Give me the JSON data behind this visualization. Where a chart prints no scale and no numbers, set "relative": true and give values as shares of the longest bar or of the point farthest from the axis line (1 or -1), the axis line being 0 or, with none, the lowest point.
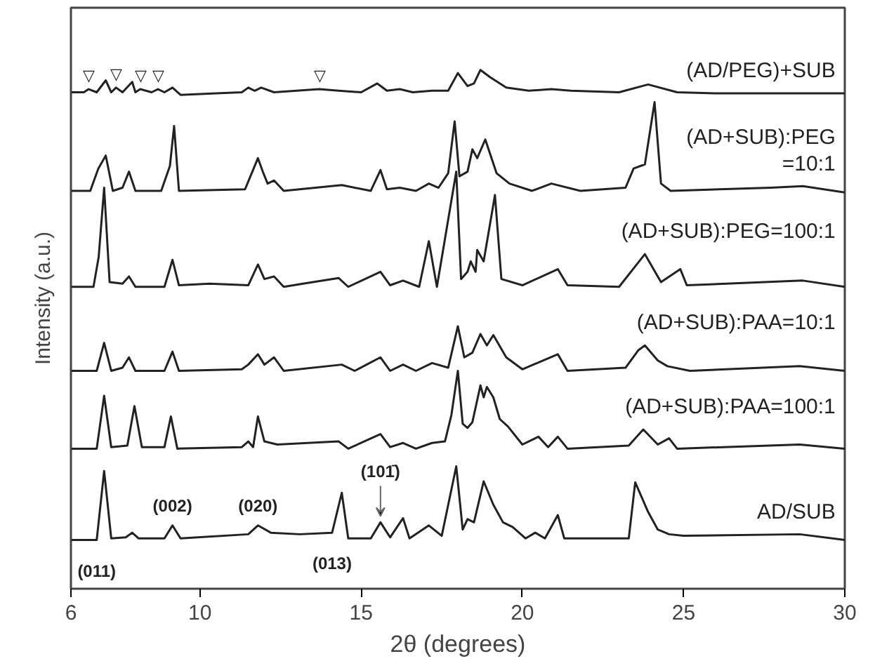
{
  "chart_data": {
    "type": "line",
    "relative": true,
    "xlabel": "2θ (degrees)",
    "ylabel": "Intensity (a.u.)",
    "xlim": [
      6,
      30
    ],
    "xticks": [
      6,
      10,
      15,
      20,
      25,
      30
    ],
    "grid": false,
    "marker": "none",
    "line_style": "solid",
    "series": [
      {
        "name": "(AD/PEG)+SUB",
        "color": "#222222",
        "x": [
          6,
          6.4,
          6.55,
          6.8,
          7.08,
          7.25,
          7.4,
          7.6,
          7.9,
          8.0,
          8.15,
          8.5,
          8.7,
          8.9,
          9.15,
          9.4,
          10.5,
          11.3,
          11.5,
          11.7,
          11.9,
          12.3,
          13.7,
          14.3,
          15.0,
          15.5,
          15.8,
          16.2,
          16.6,
          17.2,
          17.7,
          18.0,
          18.3,
          18.5,
          18.7,
          19.0,
          19.5,
          20.2,
          20.9,
          21.5,
          23.0,
          23.9,
          24.8,
          26,
          28,
          30
        ],
        "values": [
          0.957,
          0.957,
          0.963,
          0.957,
          0.98,
          0.957,
          0.966,
          0.957,
          0.977,
          0.957,
          0.963,
          0.957,
          0.963,
          0.957,
          0.966,
          0.952,
          0.955,
          0.957,
          0.966,
          0.96,
          0.966,
          0.957,
          0.963,
          0.96,
          0.957,
          0.974,
          0.96,
          0.963,
          0.957,
          0.96,
          0.96,
          0.994,
          0.969,
          0.974,
          1.0,
          0.986,
          0.966,
          0.96,
          0.963,
          0.96,
          0.957,
          0.972,
          0.957,
          0.955,
          0.955,
          0.955
        ]
      },
      {
        "name": "(AD+SUB):PEG\n=10:1",
        "color": "#222222",
        "x": [
          6,
          6.6,
          6.85,
          7.08,
          7.3,
          7.6,
          7.8,
          8.0,
          8.8,
          9.07,
          9.2,
          9.35,
          11.4,
          11.8,
          11.95,
          12.1,
          12.3,
          12.6,
          14.4,
          15.3,
          15.6,
          15.8,
          16.2,
          16.7,
          17.1,
          17.4,
          17.7,
          17.9,
          18.05,
          18.3,
          18.45,
          18.6,
          18.85,
          19.2,
          19.6,
          20.3,
          20.9,
          21.8,
          23.2,
          23.45,
          23.8,
          24.1,
          24.3,
          24.6,
          27.7,
          28.7,
          30
        ],
        "values": [
          0.767,
          0.767,
          0.81,
          0.835,
          0.767,
          0.773,
          0.804,
          0.767,
          0.767,
          0.815,
          0.892,
          0.767,
          0.77,
          0.83,
          0.804,
          0.781,
          0.787,
          0.767,
          0.778,
          0.767,
          0.807,
          0.77,
          0.773,
          0.767,
          0.781,
          0.773,
          0.801,
          0.901,
          0.795,
          0.804,
          0.847,
          0.83,
          0.866,
          0.801,
          0.781,
          0.767,
          0.781,
          0.767,
          0.773,
          0.81,
          0.818,
          0.938,
          0.781,
          0.767,
          0.773,
          0.776,
          0.764
        ]
      },
      {
        "name": "(AD+SUB):PEG=100:1",
        "color": "#222222",
        "x": [
          6,
          6.7,
          6.86,
          7.03,
          7.2,
          7.6,
          7.8,
          8.0,
          8.9,
          9.15,
          9.35,
          10.3,
          11.5,
          11.8,
          12.0,
          12.3,
          12.6,
          13.2,
          14.3,
          14.6,
          15.6,
          15.9,
          16.3,
          16.8,
          17.1,
          17.35,
          17.95,
          18.1,
          18.3,
          18.4,
          18.55,
          18.6,
          18.8,
          19.15,
          19.35,
          20.0,
          21.1,
          21.4,
          23.0,
          23.8,
          24.3,
          24.9,
          25.1,
          28.7,
          30
        ],
        "values": [
          0.582,
          0.582,
          0.639,
          0.773,
          0.591,
          0.588,
          0.602,
          0.582,
          0.582,
          0.634,
          0.585,
          0.588,
          0.585,
          0.625,
          0.597,
          0.602,
          0.582,
          0.588,
          0.599,
          0.582,
          0.611,
          0.585,
          0.594,
          0.582,
          0.67,
          0.582,
          0.804,
          0.597,
          0.611,
          0.631,
          0.611,
          0.653,
          0.631,
          0.759,
          0.597,
          0.585,
          0.616,
          0.585,
          0.582,
          0.645,
          0.591,
          0.616,
          0.585,
          0.594,
          0.582
        ]
      },
      {
        "name": "(AD+SUB):PAA=10:1",
        "color": "#222222",
        "x": [
          6,
          6.8,
          7.03,
          7.25,
          7.6,
          7.8,
          8.0,
          8.9,
          9.15,
          9.35,
          11.3,
          11.5,
          11.8,
          12.0,
          12.3,
          12.6,
          14.4,
          14.8,
          15.6,
          15.9,
          16.3,
          16.7,
          17.2,
          17.7,
          18.0,
          18.2,
          18.45,
          18.7,
          18.9,
          19.1,
          19.5,
          20.0,
          21.1,
          21.4,
          23.2,
          23.6,
          23.8,
          24.2,
          24.5,
          25.2,
          28.6,
          30
        ],
        "values": [
          0.42,
          0.42,
          0.474,
          0.42,
          0.426,
          0.446,
          0.42,
          0.42,
          0.457,
          0.42,
          0.423,
          0.432,
          0.452,
          0.432,
          0.446,
          0.42,
          0.432,
          0.42,
          0.446,
          0.42,
          0.432,
          0.42,
          0.435,
          0.426,
          0.506,
          0.446,
          0.455,
          0.491,
          0.469,
          0.489,
          0.446,
          0.423,
          0.452,
          0.42,
          0.426,
          0.46,
          0.469,
          0.44,
          0.429,
          0.42,
          0.429,
          0.42
        ]
      },
      {
        "name": "(AD+SUB):PAA=100:1",
        "color": "#222222",
        "x": [
          6,
          6.8,
          7.03,
          7.25,
          7.75,
          7.97,
          8.2,
          8.9,
          9.1,
          9.3,
          11.3,
          11.5,
          11.65,
          11.8,
          12.0,
          12.4,
          14.3,
          14.6,
          15.6,
          15.9,
          16.3,
          16.7,
          17.2,
          17.6,
          17.8,
          18.0,
          18.15,
          18.3,
          18.45,
          18.7,
          18.8,
          18.9,
          19.1,
          19.3,
          19.55,
          20.0,
          20.5,
          20.8,
          21.1,
          21.4,
          23.3,
          23.75,
          24.2,
          24.55,
          24.8,
          28.6,
          30
        ],
        "values": [
          0.27,
          0.27,
          0.372,
          0.273,
          0.276,
          0.352,
          0.273,
          0.273,
          0.332,
          0.27,
          0.273,
          0.284,
          0.273,
          0.332,
          0.284,
          0.278,
          0.284,
          0.27,
          0.298,
          0.273,
          0.281,
          0.27,
          0.281,
          0.284,
          0.335,
          0.42,
          0.318,
          0.31,
          0.321,
          0.392,
          0.369,
          0.389,
          0.369,
          0.327,
          0.313,
          0.278,
          0.293,
          0.273,
          0.293,
          0.27,
          0.276,
          0.307,
          0.278,
          0.29,
          0.27,
          0.278,
          0.27
        ]
      },
      {
        "name": "AD/SUB",
        "color": "#222222",
        "x": [
          6,
          6.8,
          7.03,
          7.25,
          7.7,
          7.9,
          8.1,
          8.9,
          9.15,
          9.4,
          11.5,
          11.8,
          12.2,
          13.1,
          14.1,
          14.4,
          14.6,
          15.3,
          15.6,
          15.9,
          16.3,
          16.5,
          17.1,
          17.5,
          17.95,
          18.15,
          18.3,
          18.5,
          18.8,
          19.1,
          19.4,
          19.7,
          20.1,
          20.4,
          20.7,
          21.1,
          21.3,
          23.3,
          23.5,
          23.9,
          24.2,
          24.55,
          25,
          28.6,
          30
        ],
        "values": [
          0.094,
          0.094,
          0.227,
          0.097,
          0.099,
          0.108,
          0.097,
          0.097,
          0.122,
          0.097,
          0.105,
          0.122,
          0.108,
          0.105,
          0.108,
          0.185,
          0.097,
          0.097,
          0.128,
          0.099,
          0.136,
          0.097,
          0.122,
          0.102,
          0.236,
          0.114,
          0.134,
          0.128,
          0.207,
          0.162,
          0.128,
          0.119,
          0.097,
          0.108,
          0.097,
          0.142,
          0.097,
          0.097,
          0.205,
          0.148,
          0.114,
          0.105,
          0.102,
          0.105,
          0.094
        ]
      }
    ],
    "annotations": [
      {
        "text": "(011)",
        "x": 6.8,
        "y": 0.094
      },
      {
        "text": "(002)",
        "x": 9.15,
        "y": 0.122
      },
      {
        "text": "(020)",
        "x": 11.8,
        "y": 0.122
      },
      {
        "text": "(013)",
        "x": 14.1,
        "y": 0.108
      },
      {
        "text": "(101̄)",
        "x": 15.6,
        "y": 0.128
      },
      {
        "text": "▽",
        "x": 6.55,
        "y": 0.963
      },
      {
        "text": "▽",
        "x": 7.4,
        "y": 0.966
      },
      {
        "text": "▽",
        "x": 8.15,
        "y": 0.963
      },
      {
        "text": "▽",
        "x": 8.7,
        "y": 0.963
      },
      {
        "text": "▽",
        "x": 13.7,
        "y": 0.963
      }
    ]
  }
}
